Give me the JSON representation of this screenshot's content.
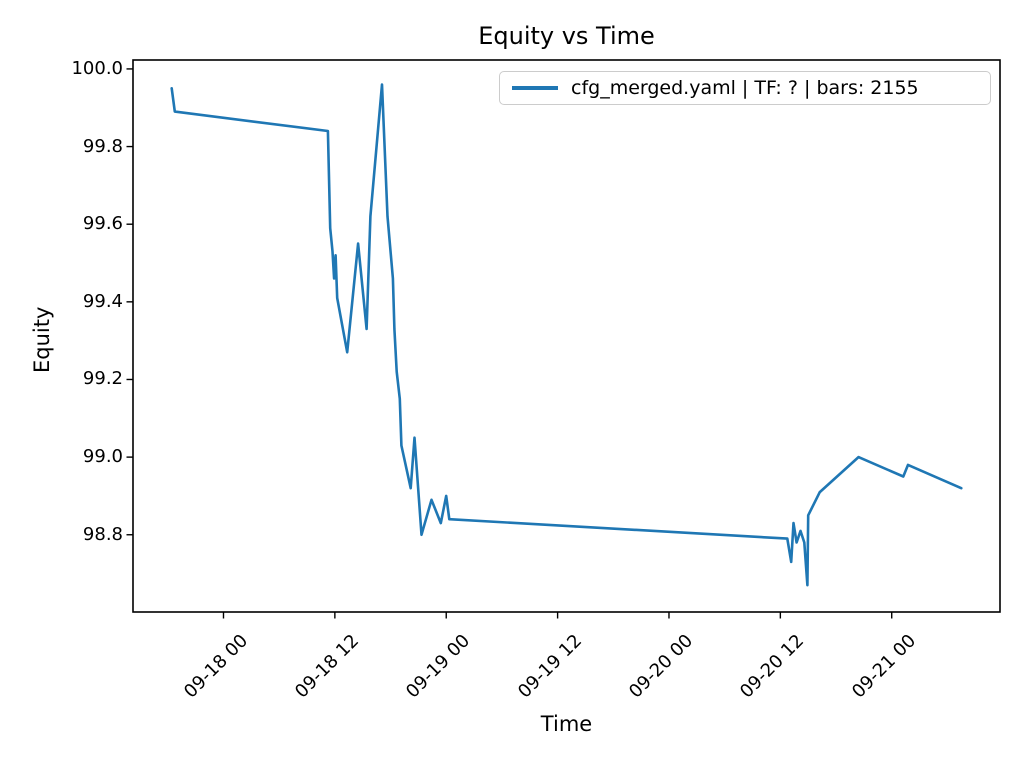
{
  "chart_data": {
    "type": "line",
    "title": "Equity vs Time",
    "xlabel": "Time",
    "ylabel": "Equity",
    "grid": false,
    "line_color": "#1f77b4",
    "line_width": 2.6,
    "axis_color": "#000000",
    "legend_position": "upper right",
    "legend": [
      {
        "label": "cfg_merged.yaml | TF: ? | bars: 2155",
        "color": "#1f77b4"
      }
    ],
    "x_domain": [
      "09-17 14:15",
      "09-21 11:40"
    ],
    "y_domain": [
      98.601,
      100.023
    ],
    "y_ticks": [
      100.0,
      99.8,
      99.6,
      99.4,
      99.2,
      99.0,
      98.8
    ],
    "x_ticks": [
      {
        "t": "09-18 00:00",
        "label": "09-18 00"
      },
      {
        "t": "09-18 12:00",
        "label": "09-18 12"
      },
      {
        "t": "09-19 00:00",
        "label": "09-19 00"
      },
      {
        "t": "09-19 12:00",
        "label": "09-19 12"
      },
      {
        "t": "09-20 00:00",
        "label": "09-20 00"
      },
      {
        "t": "09-20 12:00",
        "label": "09-20 12"
      },
      {
        "t": "09-21 00:00",
        "label": "09-21 00"
      }
    ],
    "series": [
      {
        "name": "cfg_merged.yaml | TF: ? | bars: 2155",
        "points": [
          [
            "09-17 18:25",
            99.95
          ],
          [
            "09-17 18:45",
            99.89
          ],
          [
            "09-18 11:15",
            99.84
          ],
          [
            "09-18 11:30",
            99.59
          ],
          [
            "09-18 11:45",
            99.53
          ],
          [
            "09-18 11:55",
            99.46
          ],
          [
            "09-18 12:05",
            99.52
          ],
          [
            "09-18 12:15",
            99.41
          ],
          [
            "09-18 13:20",
            99.27
          ],
          [
            "09-18 14:30",
            99.55
          ],
          [
            "09-18 15:25",
            99.33
          ],
          [
            "09-18 15:50",
            99.62
          ],
          [
            "09-18 17:05",
            99.96
          ],
          [
            "09-18 17:40",
            99.62
          ],
          [
            "09-18 18:15",
            99.46
          ],
          [
            "09-18 18:25",
            99.33
          ],
          [
            "09-18 18:40",
            99.22
          ],
          [
            "09-18 19:00",
            99.15
          ],
          [
            "09-18 19:10",
            99.03
          ],
          [
            "09-18 20:10",
            98.92
          ],
          [
            "09-18 20:35",
            99.05
          ],
          [
            "09-18 21:20",
            98.8
          ],
          [
            "09-18 22:25",
            98.89
          ],
          [
            "09-18 23:25",
            98.83
          ],
          [
            "09-19 00:00",
            98.9
          ],
          [
            "09-19 00:20",
            98.84
          ],
          [
            "09-20 12:45",
            98.79
          ],
          [
            "09-20 13:10",
            98.73
          ],
          [
            "09-20 13:25",
            98.83
          ],
          [
            "09-20 13:45",
            98.78
          ],
          [
            "09-20 14:10",
            98.81
          ],
          [
            "09-20 14:35",
            98.78
          ],
          [
            "09-20 14:55",
            98.67
          ],
          [
            "09-20 15:00",
            98.85
          ],
          [
            "09-20 16:15",
            98.91
          ],
          [
            "09-20 20:25",
            99.0
          ],
          [
            "09-21 01:15",
            98.95
          ],
          [
            "09-21 01:45",
            98.98
          ],
          [
            "09-21 07:30",
            98.92
          ]
        ]
      }
    ]
  }
}
